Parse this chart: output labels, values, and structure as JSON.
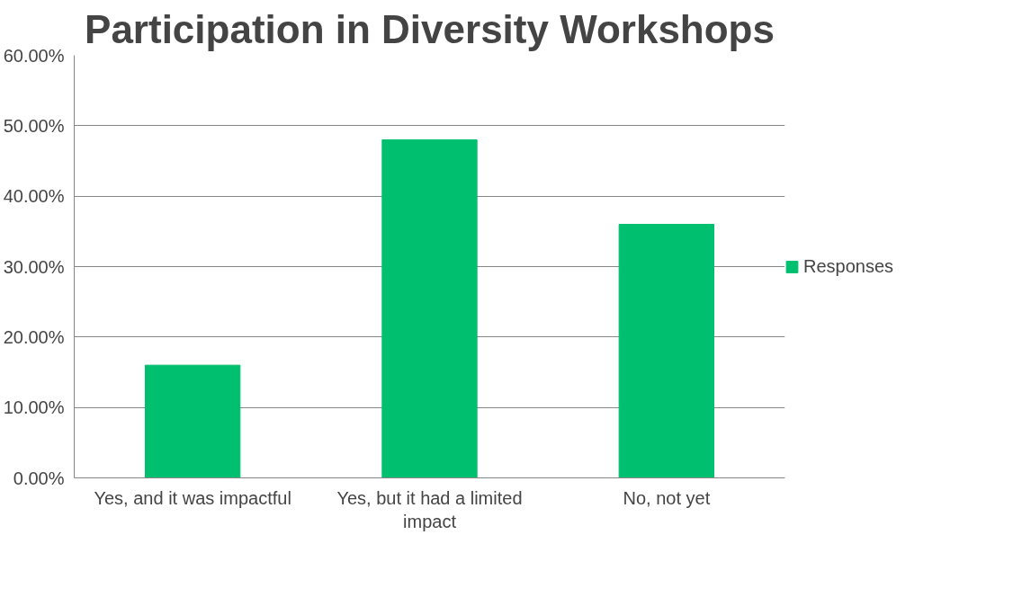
{
  "chart_data": {
    "type": "bar",
    "title": "Participation in Diversity Workshops",
    "categories": [
      "Yes, and it was impactful",
      "Yes, but it had a limited impact",
      "No, not yet"
    ],
    "series": [
      {
        "name": "Responses",
        "color": "#00bf6f",
        "values": [
          16,
          48,
          36
        ]
      }
    ],
    "ylim": [
      0,
      60
    ],
    "yticks": [
      {
        "value": 0,
        "label": "0.00%"
      },
      {
        "value": 10,
        "label": "10.00%"
      },
      {
        "value": 20,
        "label": "20.00%"
      },
      {
        "value": 30,
        "label": "30.00%"
      },
      {
        "value": 40,
        "label": "40.00%"
      },
      {
        "value": 50,
        "label": "50.00%"
      },
      {
        "value": 60,
        "label": "60.00%"
      }
    ],
    "grid": "y",
    "legend": "right"
  }
}
